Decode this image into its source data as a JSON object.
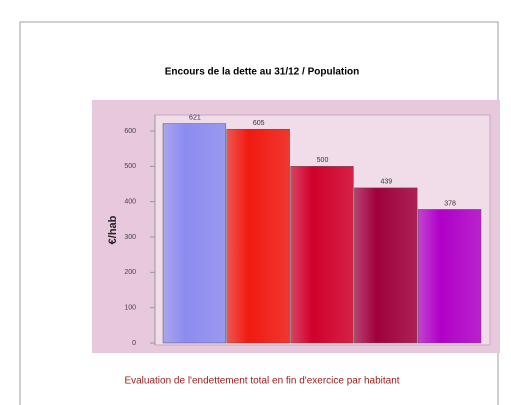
{
  "chart_data": {
    "type": "bar",
    "title": "Encours de la dette au 31/12 / Population",
    "y_label": "€/hab",
    "caption": "Evaluation de l'endettement total en fin d'exercice par habitant",
    "categories": [
      null,
      null,
      null,
      null,
      null
    ],
    "values": [
      621,
      605,
      500,
      439,
      378
    ],
    "colors": [
      "#8c8cf0",
      "#f01a10",
      "#d0002a",
      "#a0003c",
      "#b000c8"
    ],
    "ylim": [
      0,
      600
    ],
    "yticks": [
      0,
      100,
      200,
      300,
      400,
      500,
      600
    ],
    "grid": false
  }
}
